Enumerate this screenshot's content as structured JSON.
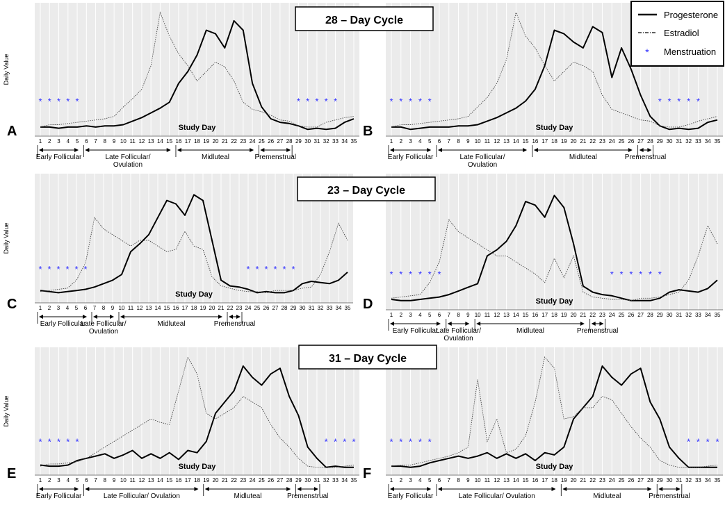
{
  "figure": {
    "y_axis_label": "Daily Value",
    "x_axis_label": "Study Day",
    "cycle_titles": [
      "28 – Day Cycle",
      "23 – Day Cycle",
      "31 – Day Cycle"
    ],
    "legend": {
      "progesterone": "Progesterone",
      "estradiol": "Estradiol",
      "menstruation": "Menstruation",
      "menstruation_symbol": "*",
      "menstruation_color": "#2b2bff"
    },
    "days": [
      1,
      2,
      3,
      4,
      5,
      6,
      7,
      8,
      9,
      10,
      11,
      12,
      13,
      14,
      15,
      16,
      17,
      18,
      19,
      20,
      21,
      22,
      23,
      24,
      25,
      26,
      27,
      28,
      29,
      30,
      31,
      32,
      33,
      34,
      35
    ]
  },
  "chart_data": [
    {
      "type": "line",
      "panel_letter": "A",
      "cycle": "28 – Day Cycle",
      "xlabel": "Study Day",
      "ylabel": "Daily Value",
      "ylim": [
        0,
        100
      ],
      "x": [
        1,
        2,
        3,
        4,
        5,
        6,
        7,
        8,
        9,
        10,
        11,
        12,
        13,
        14,
        15,
        16,
        17,
        18,
        19,
        20,
        21,
        22,
        23,
        24,
        25,
        26,
        27,
        28,
        29,
        30,
        31,
        32,
        33,
        34,
        35
      ],
      "series": [
        {
          "name": "Progesterone",
          "style": "solid",
          "values": [
            3,
            3,
            2,
            3,
            3,
            4,
            3,
            4,
            4,
            5,
            8,
            11,
            15,
            19,
            24,
            40,
            50,
            64,
            85,
            82,
            70,
            93,
            85,
            40,
            20,
            10,
            7,
            6,
            4,
            1,
            2,
            1,
            2,
            7,
            10
          ]
        },
        {
          "name": "Estradiol",
          "style": "dotted",
          "values": [
            3,
            5,
            5,
            6,
            7,
            8,
            9,
            10,
            12,
            20,
            27,
            35,
            55,
            100,
            80,
            65,
            55,
            42,
            50,
            58,
            54,
            42,
            24,
            18,
            16,
            13,
            9,
            8,
            4,
            3,
            3,
            7,
            9,
            11,
            12
          ]
        }
      ],
      "menstruation_days": [
        1,
        2,
        3,
        4,
        5,
        29,
        30,
        31,
        32,
        33
      ],
      "phases": [
        {
          "label": "Early Follicular",
          "start": 1,
          "end": 5
        },
        {
          "label": "Late Follicular/ Ovulation",
          "start": 6,
          "end": 15
        },
        {
          "label": "Midluteal",
          "start": 16,
          "end": 24
        },
        {
          "label": "Premenstrual",
          "start": 25,
          "end": 28
        }
      ]
    },
    {
      "type": "line",
      "panel_letter": "B",
      "cycle": "28 – Day Cycle",
      "xlabel": "Study Day",
      "ylabel": "",
      "ylim": [
        0,
        100
      ],
      "x": [
        1,
        2,
        3,
        4,
        5,
        6,
        7,
        8,
        9,
        10,
        11,
        12,
        13,
        14,
        15,
        16,
        17,
        18,
        19,
        20,
        21,
        22,
        23,
        24,
        25,
        26,
        27,
        28,
        29,
        30,
        31,
        32,
        33,
        34,
        35
      ],
      "series": [
        {
          "name": "Progesterone",
          "style": "solid",
          "values": [
            3,
            3,
            1,
            2,
            3,
            3,
            3,
            4,
            4,
            5,
            8,
            11,
            15,
            19,
            25,
            35,
            55,
            85,
            82,
            75,
            70,
            88,
            83,
            45,
            70,
            52,
            30,
            12,
            4,
            1,
            2,
            1,
            2,
            7,
            9
          ]
        },
        {
          "name": "Estradiol",
          "style": "dotted",
          "values": [
            3,
            5,
            5,
            6,
            7,
            8,
            9,
            10,
            12,
            20,
            28,
            40,
            60,
            100,
            80,
            70,
            55,
            42,
            50,
            58,
            55,
            50,
            30,
            18,
            15,
            12,
            9,
            8,
            4,
            3,
            3,
            5,
            8,
            10,
            12
          ]
        }
      ],
      "menstruation_days": [
        1,
        2,
        3,
        4,
        5,
        29,
        30,
        31,
        32,
        33
      ],
      "phases": [
        {
          "label": "Early Follicular",
          "start": 1,
          "end": 5
        },
        {
          "label": "Late Follicular/ Ovulation",
          "start": 6,
          "end": 15
        },
        {
          "label": "Midluteal",
          "start": 16,
          "end": 26
        },
        {
          "label": "Premenstrual",
          "start": 27,
          "end": 28
        }
      ]
    },
    {
      "type": "line",
      "panel_letter": "C",
      "cycle": "23 – Day Cycle",
      "xlabel": "Study Day",
      "ylabel": "Daily Value",
      "ylim": [
        0,
        100
      ],
      "x": [
        1,
        2,
        3,
        4,
        5,
        6,
        7,
        8,
        9,
        10,
        11,
        12,
        13,
        14,
        15,
        16,
        17,
        18,
        19,
        20,
        21,
        22,
        23,
        24,
        25,
        26,
        27,
        28,
        29,
        30,
        31,
        32,
        33,
        34,
        35
      ],
      "series": [
        {
          "name": "Progesterone",
          "style": "solid",
          "values": [
            6,
            5,
            4,
            5,
            6,
            7,
            9,
            12,
            15,
            20,
            40,
            47,
            55,
            70,
            85,
            82,
            72,
            90,
            85,
            50,
            15,
            10,
            9,
            7,
            4,
            5,
            4,
            4,
            6,
            12,
            14,
            13,
            12,
            15,
            22
          ]
        },
        {
          "name": "Estradiol",
          "style": "dotted",
          "values": [
            5,
            6,
            7,
            8,
            15,
            30,
            70,
            60,
            55,
            50,
            45,
            50,
            50,
            45,
            40,
            42,
            58,
            45,
            42,
            18,
            10,
            8,
            6,
            5,
            5,
            4,
            6,
            6,
            6,
            8,
            9,
            20,
            40,
            65,
            50
          ]
        }
      ],
      "menstruation_days": [
        1,
        2,
        3,
        4,
        5,
        6,
        24,
        25,
        26,
        27,
        28,
        29
      ],
      "phases": [
        {
          "label": "Early Follicular",
          "start": 1,
          "end": 6
        },
        {
          "label": "Late Follicular/ Ovulation",
          "start": 7,
          "end": 9
        },
        {
          "label": "Midluteal",
          "start": 10,
          "end": 21
        },
        {
          "label": "Premenstrual",
          "start": 22,
          "end": 23
        }
      ]
    },
    {
      "type": "line",
      "panel_letter": "D",
      "cycle": "23 – Day Cycle",
      "xlabel": "Study Day",
      "ylabel": "",
      "ylim": [
        0,
        100
      ],
      "x": [
        1,
        2,
        3,
        4,
        5,
        6,
        7,
        8,
        9,
        10,
        11,
        12,
        13,
        14,
        15,
        16,
        17,
        18,
        19,
        20,
        21,
        22,
        23,
        24,
        25,
        26,
        27,
        28,
        29,
        30,
        31,
        32,
        33,
        34,
        35
      ],
      "series": [
        {
          "name": "Progesterone",
          "style": "solid",
          "values": [
            4,
            3,
            3,
            4,
            5,
            6,
            8,
            11,
            14,
            17,
            40,
            45,
            52,
            65,
            85,
            82,
            72,
            90,
            80,
            50,
            15,
            10,
            8,
            7,
            5,
            3,
            3,
            3,
            5,
            10,
            12,
            11,
            10,
            13,
            20
          ]
        },
        {
          "name": "Estradiol",
          "style": "dotted",
          "values": [
            5,
            6,
            7,
            8,
            18,
            35,
            70,
            60,
            55,
            50,
            45,
            40,
            40,
            35,
            30,
            25,
            18,
            38,
            22,
            40,
            10,
            6,
            5,
            4,
            4,
            3,
            5,
            5,
            6,
            8,
            10,
            20,
            40,
            65,
            50
          ]
        }
      ],
      "menstruation_days": [
        1,
        2,
        3,
        4,
        5,
        6,
        24,
        25,
        26,
        27,
        28,
        29
      ],
      "phases": [
        {
          "label": "Early Follicular",
          "start": 1,
          "end": 6
        },
        {
          "label": "Late Follicular/ Ovulation",
          "start": 7,
          "end": 9
        },
        {
          "label": "Midluteal",
          "start": 10,
          "end": 21
        },
        {
          "label": "Premenstrual",
          "start": 22,
          "end": 23
        }
      ]
    },
    {
      "type": "line",
      "panel_letter": "E",
      "cycle": "31 – Day Cycle",
      "xlabel": "Study Day",
      "ylabel": "Daily Value",
      "ylim": [
        0,
        100
      ],
      "x": [
        1,
        2,
        3,
        4,
        5,
        6,
        7,
        8,
        9,
        10,
        11,
        12,
        13,
        14,
        15,
        16,
        17,
        18,
        19,
        20,
        21,
        22,
        23,
        24,
        25,
        26,
        27,
        28,
        29,
        30,
        31,
        32,
        33,
        34,
        35
      ],
      "series": [
        {
          "name": "Progesterone",
          "style": "solid",
          "values": [
            4,
            3,
            3,
            4,
            8,
            10,
            12,
            14,
            10,
            13,
            17,
            10,
            14,
            10,
            15,
            9,
            17,
            15,
            25,
            50,
            60,
            70,
            92,
            82,
            75,
            85,
            90,
            65,
            48,
            20,
            10,
            2,
            3,
            2,
            2
          ]
        },
        {
          "name": "Estradiol",
          "style": "dotted",
          "values": [
            3,
            5,
            5,
            6,
            7,
            10,
            15,
            20,
            25,
            30,
            35,
            40,
            45,
            42,
            40,
            70,
            100,
            85,
            50,
            45,
            50,
            55,
            65,
            60,
            55,
            40,
            28,
            20,
            10,
            3,
            2,
            2,
            2,
            3,
            4
          ]
        }
      ],
      "menstruation_days": [
        1,
        2,
        3,
        4,
        5,
        32,
        33,
        34,
        35
      ],
      "phases": [
        {
          "label": "Early Follicular",
          "start": 1,
          "end": 5
        },
        {
          "label": "Late Follicular/ Ovulation",
          "start": 6,
          "end": 18
        },
        {
          "label": "Midluteal",
          "start": 19,
          "end": 28
        },
        {
          "label": "Premenstrual",
          "start": 29,
          "end": 31
        }
      ]
    },
    {
      "type": "line",
      "panel_letter": "F",
      "cycle": "31 – Day Cycle",
      "xlabel": "Study Day",
      "ylabel": "",
      "ylim": [
        0,
        100
      ],
      "x": [
        1,
        2,
        3,
        4,
        5,
        6,
        7,
        8,
        9,
        10,
        11,
        12,
        13,
        14,
        15,
        16,
        17,
        18,
        19,
        20,
        21,
        22,
        23,
        24,
        25,
        26,
        27,
        28,
        29,
        30,
        31,
        32,
        33,
        34,
        35
      ],
      "series": [
        {
          "name": "Progesterone",
          "style": "solid",
          "values": [
            3,
            3,
            2,
            3,
            6,
            8,
            10,
            12,
            10,
            12,
            15,
            10,
            14,
            10,
            14,
            8,
            15,
            13,
            20,
            45,
            55,
            65,
            92,
            82,
            75,
            85,
            90,
            60,
            45,
            20,
            10,
            2,
            2,
            2,
            2
          ]
        },
        {
          "name": "Estradiol",
          "style": "dotted",
          "values": [
            3,
            4,
            4,
            6,
            8,
            10,
            12,
            15,
            20,
            80,
            25,
            45,
            15,
            18,
            30,
            60,
            100,
            90,
            45,
            47,
            55,
            55,
            65,
            62,
            50,
            38,
            28,
            20,
            8,
            4,
            2,
            2,
            2,
            3,
            4
          ]
        }
      ],
      "menstruation_days": [
        1,
        2,
        3,
        4,
        5,
        32,
        33,
        34,
        35
      ],
      "phases": [
        {
          "label": "Early Follicular",
          "start": 1,
          "end": 5
        },
        {
          "label": "Late Follicular/ Ovulation",
          "start": 6,
          "end": 18
        },
        {
          "label": "Midluteal",
          "start": 19,
          "end": 28
        },
        {
          "label": "Premenstrual",
          "start": 29,
          "end": 31
        }
      ]
    }
  ]
}
